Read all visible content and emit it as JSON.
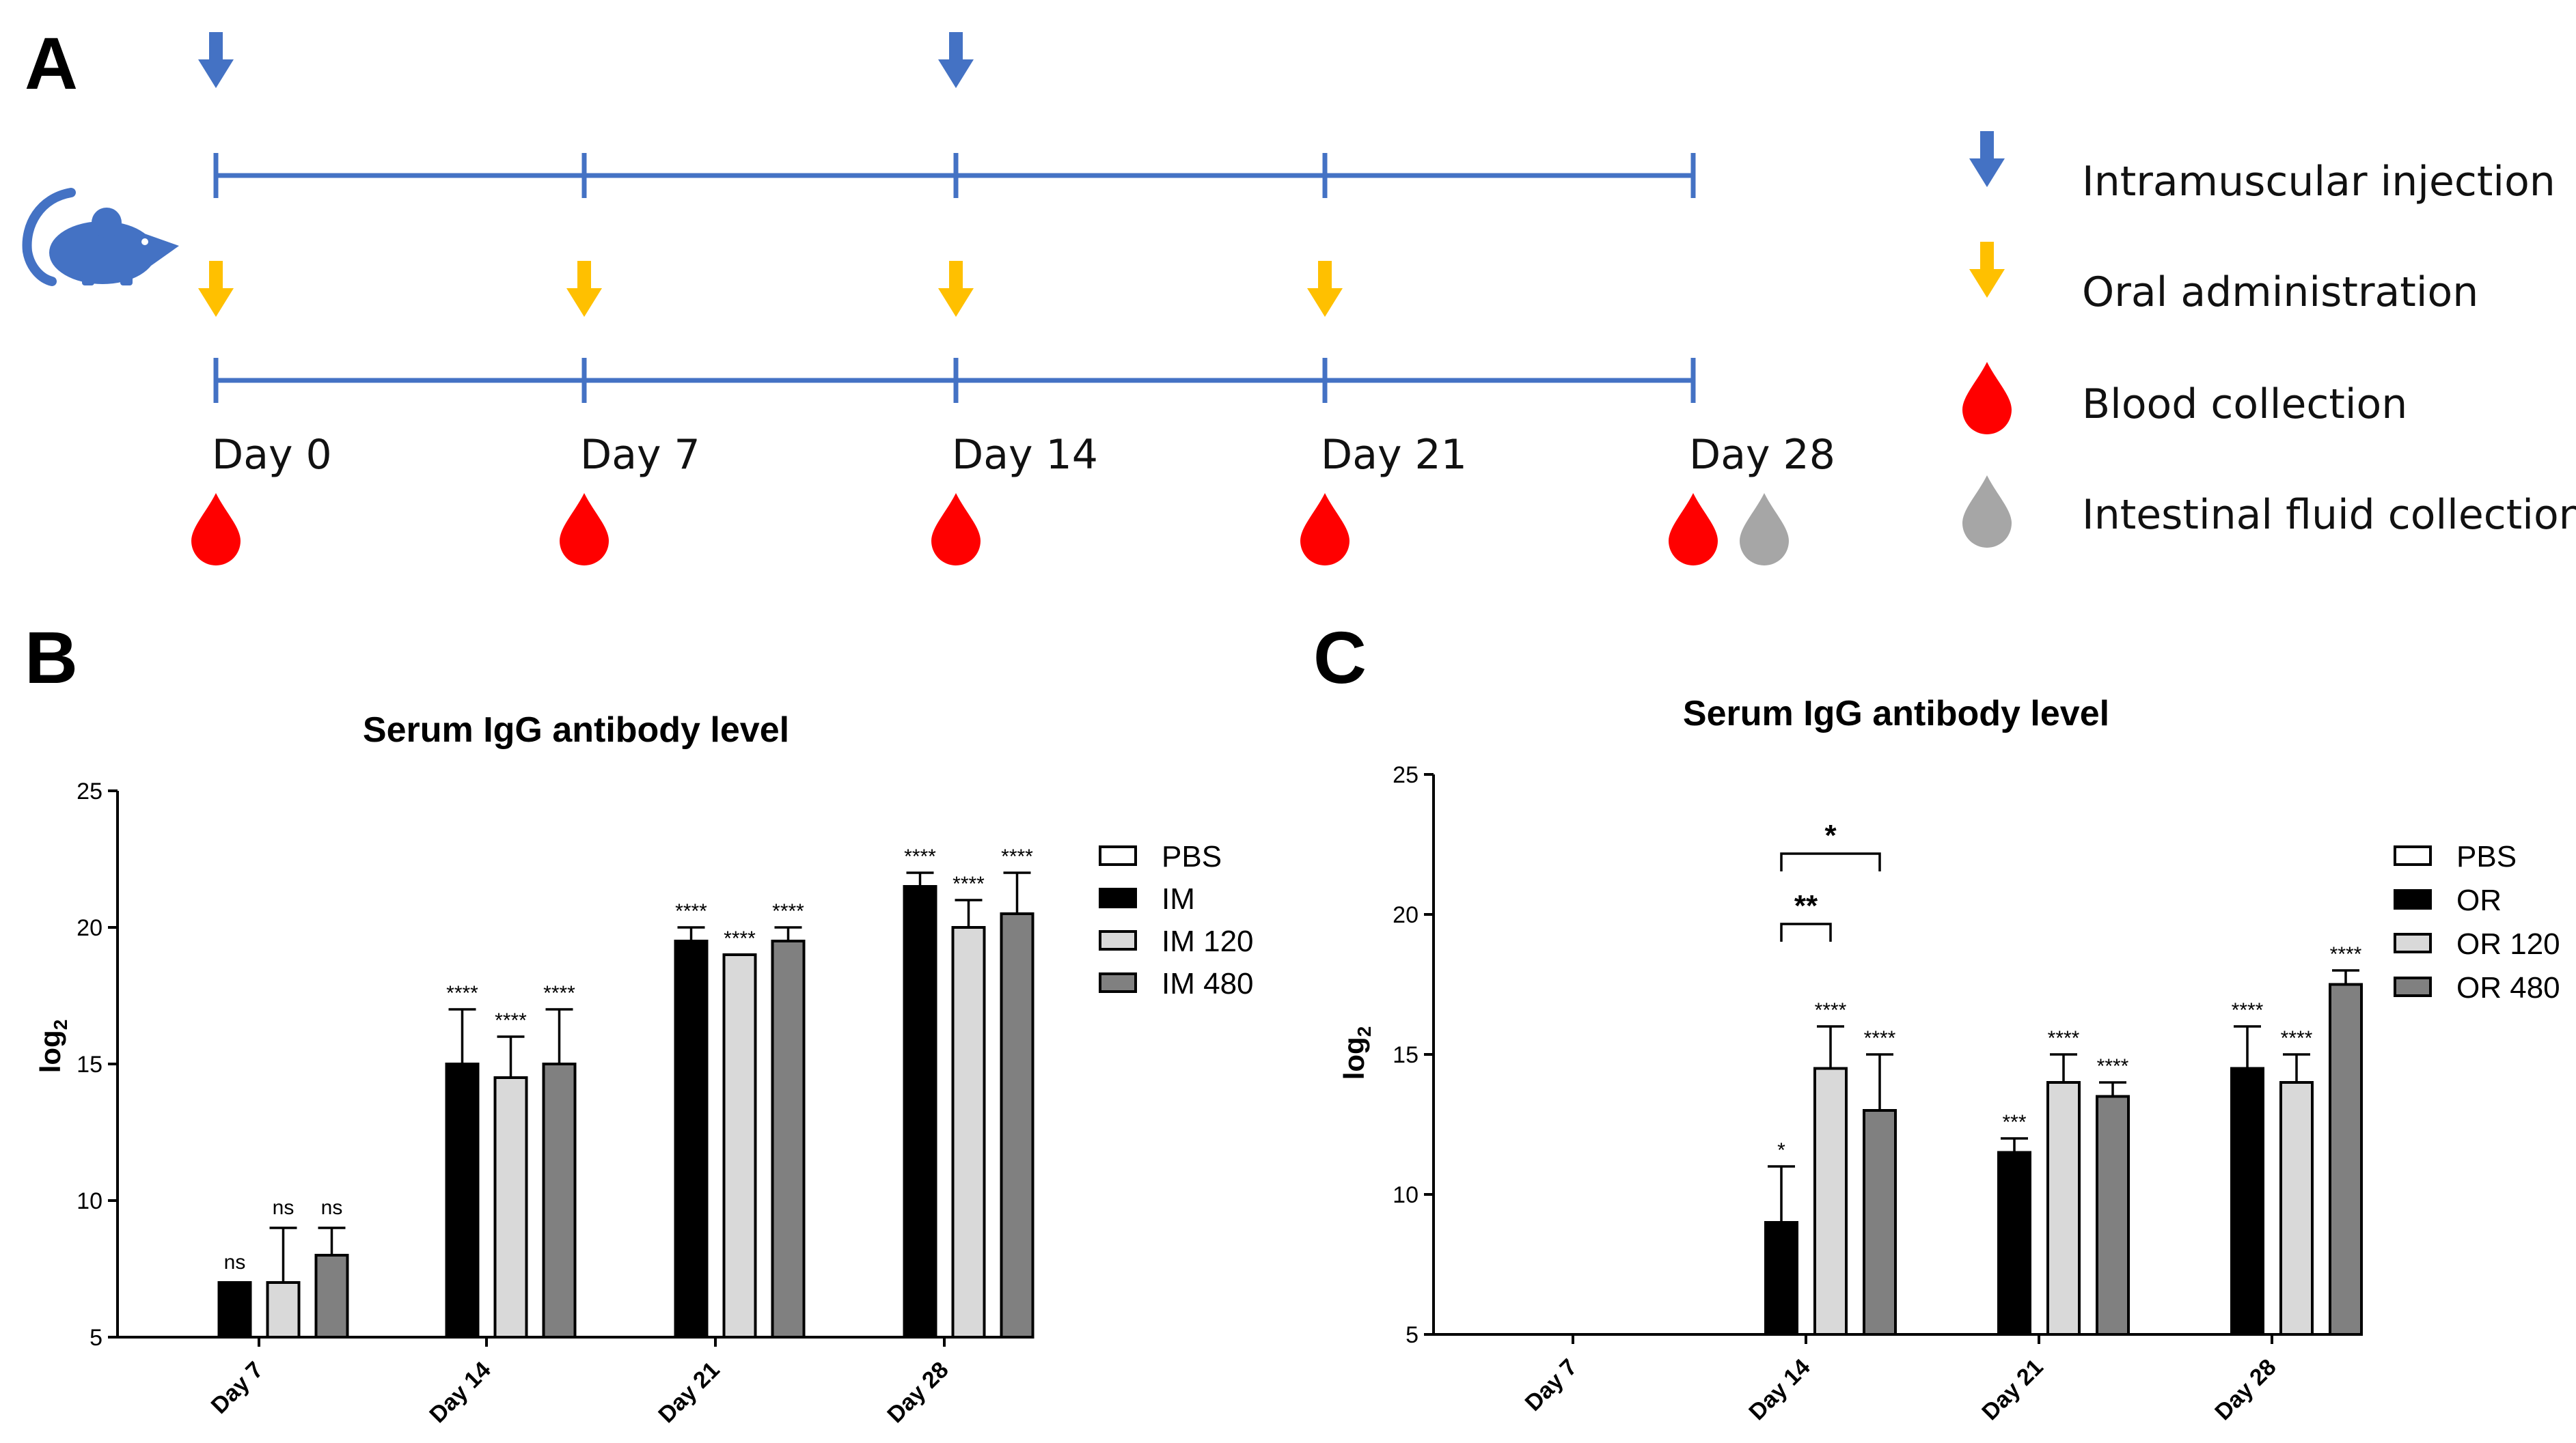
{
  "panels": {
    "a": "A",
    "b": "B",
    "c": "C"
  },
  "timeline": {
    "days": [
      "Day 0",
      "Day 7",
      "Day 14",
      "Day 21",
      "Day 28"
    ],
    "intramuscular_days": [
      0,
      14
    ],
    "oral_days": [
      0,
      7,
      14,
      21
    ],
    "blood_days": [
      0,
      7,
      14,
      21,
      28
    ],
    "intestinal_days": [
      28
    ],
    "legend": [
      {
        "icon": "blue-arrow-icon",
        "label": "Intramuscular injection"
      },
      {
        "icon": "yellow-arrow-icon",
        "label": "Oral administration"
      },
      {
        "icon": "red-drop-icon",
        "label": "Blood collection"
      },
      {
        "icon": "gray-drop-icon",
        "label": "Intestinal fluid collection"
      }
    ],
    "colors": {
      "line": "#4472c4",
      "blue_arrow": "#4472c4",
      "yellow_arrow": "#ffc000",
      "red_drop": "#ff0000",
      "gray_drop": "#a6a6a6",
      "mouse": "#4472c4"
    }
  },
  "chart_data": [
    {
      "type": "bar",
      "title": "Serum IgG antibody level",
      "ylabel": "log2",
      "ylim": [
        5,
        25
      ],
      "yticks": [
        5,
        10,
        15,
        20,
        25
      ],
      "categories": [
        "Day 7",
        "Day 14",
        "Day 21",
        "Day 28"
      ],
      "series": [
        {
          "name": "PBS",
          "color": "#ffffff",
          "values": [
            null,
            null,
            null,
            null
          ],
          "errors": [
            null,
            null,
            null,
            null
          ],
          "labels": [
            "",
            "",
            "",
            ""
          ]
        },
        {
          "name": "IM",
          "color": "#000000",
          "values": [
            7,
            15,
            19.5,
            21.5
          ],
          "errors": [
            0,
            2,
            0.5,
            0.5
          ],
          "labels": [
            "ns",
            "****",
            "****",
            "****"
          ]
        },
        {
          "name": "IM 120",
          "color": "#d9d9d9",
          "values": [
            7,
            14.5,
            19,
            20
          ],
          "errors": [
            2,
            1.5,
            0,
            1
          ],
          "labels": [
            "ns",
            "****",
            "****",
            "****"
          ]
        },
        {
          "name": "IM 480",
          "color": "#808080",
          "values": [
            8,
            15,
            19.5,
            20.5
          ],
          "errors": [
            1,
            2,
            0.5,
            1.5
          ],
          "labels": [
            "ns",
            "****",
            "****",
            "****"
          ]
        }
      ],
      "legend_position": "right",
      "brackets": []
    },
    {
      "type": "bar",
      "title": "Serum IgG antibody level",
      "ylabel": "log2",
      "ylim": [
        5,
        25
      ],
      "yticks": [
        5,
        10,
        15,
        20,
        25
      ],
      "categories": [
        "Day 7",
        "Day 14",
        "Day 21",
        "Day 28"
      ],
      "series": [
        {
          "name": "PBS",
          "color": "#ffffff",
          "values": [
            null,
            null,
            null,
            null
          ],
          "errors": [
            null,
            null,
            null,
            null
          ],
          "labels": [
            "",
            "",
            "",
            ""
          ]
        },
        {
          "name": "OR",
          "color": "#000000",
          "values": [
            null,
            9,
            11.5,
            14.5
          ],
          "errors": [
            null,
            2,
            0.5,
            1.5
          ],
          "labels": [
            "",
            "*",
            "***",
            "****"
          ]
        },
        {
          "name": "OR 120",
          "color": "#d9d9d9",
          "values": [
            null,
            14.5,
            14,
            14
          ],
          "errors": [
            null,
            1.5,
            1,
            1
          ],
          "labels": [
            "",
            "****",
            "****",
            "****"
          ]
        },
        {
          "name": "OR 480",
          "color": "#808080",
          "values": [
            null,
            13,
            13.5,
            17.5
          ],
          "errors": [
            null,
            2,
            0.5,
            0.5
          ],
          "labels": [
            "",
            "****",
            "****",
            "****"
          ]
        }
      ],
      "legend_position": "right",
      "brackets": [
        {
          "category": 1,
          "from": 1,
          "to": 2,
          "label": "**"
        },
        {
          "category": 1,
          "from": 1,
          "to": 3,
          "label": "*"
        }
      ]
    }
  ]
}
